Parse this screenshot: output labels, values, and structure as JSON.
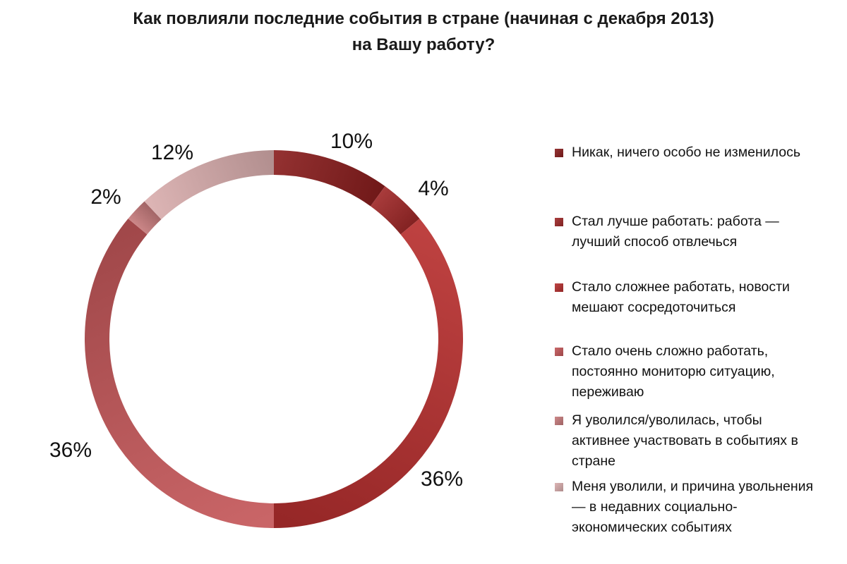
{
  "title_line1": "Как повлияли последние события в стране (начиная с декабря 2013)",
  "title_line2": "на Вашу работу?",
  "chart_data": {
    "type": "pie",
    "variant": "donut",
    "title": "Как повлияли последние события в стране (начиная с декабря 2013) на Вашу работу?",
    "legend_position": "right",
    "slices": [
      {
        "label_lines": [
          "Никак, ничего особо не изменилось"
        ],
        "value": 10,
        "data_label": "10%",
        "color": "#8a1f1f"
      },
      {
        "label_lines": [
          "Стал лучше работать: работа —",
          "лучший способ отвлечься"
        ],
        "value": 4,
        "data_label": "4%",
        "color": "#a02a2a"
      },
      {
        "label_lines": [
          "Стало сложнее работать, новости",
          "мешают сосредоточиться"
        ],
        "value": 36,
        "data_label": "36%",
        "color": "#b7302f"
      },
      {
        "label_lines": [
          "Стало очень сложно работать,",
          "постоянно мониторю ситуацию,",
          "переживаю"
        ],
        "value": 36,
        "data_label": "36%",
        "color": "#c4585a"
      },
      {
        "label_lines": [
          "Я уволился/уволилась, чтобы",
          "активнее участвовать в событиях в",
          "стране"
        ],
        "value": 2,
        "data_label": "2%",
        "color": "#c77c7d"
      },
      {
        "label_lines": [
          "Меня уволили, и причина увольнения",
          "— в недавних социально-",
          "экономических событиях"
        ],
        "value": 12,
        "data_label": "12%",
        "color": "#d9aeae"
      }
    ]
  }
}
